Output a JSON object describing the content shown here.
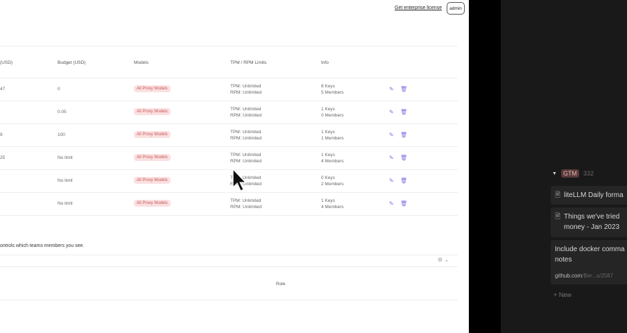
{
  "header": {
    "enterprise_link": "Get enterprise license",
    "user_button": "admin"
  },
  "table": {
    "headers": [
      "(USD)",
      "Budget (USD)",
      "Models",
      "TPM / RPM Limits",
      "Info"
    ],
    "rows": [
      {
        "spend": "47",
        "budget": "0",
        "models": "All Proxy Models",
        "tpm": "TPM: Unlimited",
        "rpm": "RPM: Unlimited",
        "keys": "8 Keys",
        "members": "5 Members"
      },
      {
        "spend": "",
        "budget": "0.05",
        "models": "All Proxy Models",
        "tpm": "TPM: Unlimited",
        "rpm": "RPM: Unlimited",
        "keys": "1 Keys",
        "members": "0 Members"
      },
      {
        "spend": "9",
        "budget": "100",
        "models": "All Proxy Models",
        "tpm": "TPM: Unlimited",
        "rpm": "RPM: Unlimited",
        "keys": "1 Keys",
        "members": "1 Members"
      },
      {
        "spend": "25",
        "budget": "No limit",
        "models": "All Proxy Models",
        "tpm": "TPM: Unlimited",
        "rpm": "RPM: Unlimited",
        "keys": "1 Keys",
        "members": "4 Members"
      },
      {
        "spend": "",
        "budget": "No limit",
        "models": "All Proxy Models",
        "tpm": "TPM: Unlimited",
        "rpm": "RPM: Unlimited",
        "keys": "0 Keys",
        "members": "2 Members"
      },
      {
        "spend": "",
        "budget": "No limit",
        "models": "All Proxy Models",
        "tpm": "TPM: Unlimited",
        "rpm": "RPM: Unlimited",
        "keys": "1 Keys",
        "members": "4 Members"
      }
    ]
  },
  "note": "ontrols which teams members you see.",
  "members_table": {
    "role_header": "Role"
  },
  "notion": {
    "group": {
      "tag": "GTM",
      "count": "332"
    },
    "cards": [
      {
        "title": "liteLLM Daily forma"
      },
      {
        "title": "Things we've tried money - Jan 2023"
      },
      {
        "title": "Include docker comma notes",
        "link_domain": "github.com",
        "link_path": "/Ber...s/2587"
      }
    ],
    "new_label": "New"
  },
  "colors": {
    "pill_bg": "#fbe0e0",
    "icon": "#7b6fe0",
    "dark_panel": "#191919"
  }
}
